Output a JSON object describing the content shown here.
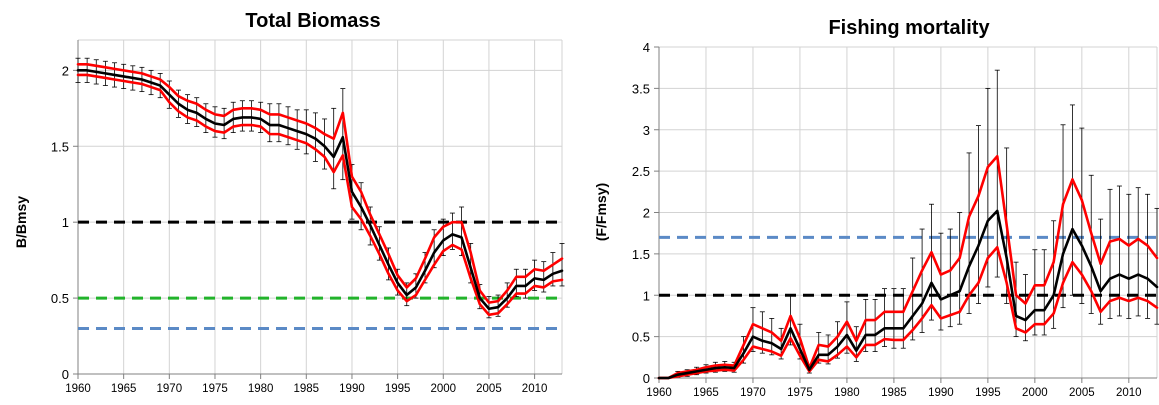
{
  "chart_data": [
    {
      "type": "line",
      "title": "Total Biomass",
      "xlabel": "",
      "ylabel": "B/Bmsy",
      "xlim": [
        1960,
        2013
      ],
      "ylim": [
        0,
        2.2
      ],
      "yticks": [
        0,
        0.5,
        1,
        1.5,
        2
      ],
      "ytick_labels": [
        "0",
        "0.5",
        "1",
        "1.5",
        "2"
      ],
      "xticks": [
        1960,
        1965,
        1970,
        1975,
        1980,
        1985,
        1990,
        1995,
        2000,
        2005,
        2010
      ],
      "grid": true,
      "x": [
        1960,
        1961,
        1962,
        1963,
        1964,
        1965,
        1966,
        1967,
        1968,
        1969,
        1970,
        1971,
        1972,
        1973,
        1974,
        1975,
        1976,
        1977,
        1978,
        1979,
        1980,
        1981,
        1982,
        1983,
        1984,
        1985,
        1986,
        1987,
        1988,
        1989,
        1990,
        1991,
        1992,
        1993,
        1994,
        1995,
        1996,
        1997,
        1998,
        1999,
        2000,
        2001,
        2002,
        2003,
        2004,
        2005,
        2006,
        2007,
        2008,
        2009,
        2010,
        2011,
        2012,
        2013
      ],
      "series": [
        {
          "color": "#000000",
          "role": "median",
          "values": [
            2.0,
            2.0,
            1.99,
            1.98,
            1.97,
            1.96,
            1.95,
            1.94,
            1.92,
            1.9,
            1.84,
            1.78,
            1.74,
            1.72,
            1.68,
            1.65,
            1.64,
            1.68,
            1.69,
            1.69,
            1.68,
            1.64,
            1.64,
            1.62,
            1.6,
            1.58,
            1.55,
            1.5,
            1.43,
            1.56,
            1.2,
            1.1,
            0.98,
            0.85,
            0.72,
            0.6,
            0.52,
            0.57,
            0.68,
            0.8,
            0.88,
            0.92,
            0.9,
            0.7,
            0.5,
            0.43,
            0.44,
            0.5,
            0.58,
            0.58,
            0.63,
            0.62,
            0.66,
            0.68
          ]
        },
        {
          "color": "#ff0000",
          "role": "upper-bound",
          "values": [
            2.04,
            2.04,
            2.03,
            2.02,
            2.01,
            2.0,
            1.99,
            1.98,
            1.96,
            1.94,
            1.89,
            1.83,
            1.8,
            1.78,
            1.74,
            1.71,
            1.7,
            1.74,
            1.75,
            1.75,
            1.74,
            1.71,
            1.71,
            1.69,
            1.67,
            1.65,
            1.62,
            1.58,
            1.55,
            1.72,
            1.3,
            1.2,
            1.05,
            0.92,
            0.79,
            0.65,
            0.57,
            0.63,
            0.76,
            0.9,
            0.97,
            1.0,
            1.0,
            0.8,
            0.55,
            0.47,
            0.48,
            0.55,
            0.64,
            0.64,
            0.69,
            0.68,
            0.72,
            0.76
          ]
        },
        {
          "color": "#ff0000",
          "role": "lower-bound",
          "values": [
            1.97,
            1.97,
            1.96,
            1.95,
            1.94,
            1.93,
            1.92,
            1.91,
            1.89,
            1.87,
            1.79,
            1.73,
            1.69,
            1.67,
            1.63,
            1.6,
            1.59,
            1.63,
            1.64,
            1.64,
            1.63,
            1.58,
            1.58,
            1.56,
            1.54,
            1.52,
            1.48,
            1.43,
            1.33,
            1.44,
            1.1,
            1.02,
            0.91,
            0.79,
            0.66,
            0.55,
            0.48,
            0.52,
            0.62,
            0.72,
            0.81,
            0.85,
            0.82,
            0.63,
            0.46,
            0.39,
            0.4,
            0.46,
            0.53,
            0.53,
            0.58,
            0.57,
            0.61,
            0.62
          ]
        }
      ],
      "error_bars": {
        "color": "#000000",
        "low": [
          1.92,
          1.92,
          1.91,
          1.9,
          1.89,
          1.88,
          1.87,
          1.86,
          1.84,
          1.82,
          1.75,
          1.69,
          1.65,
          1.63,
          1.59,
          1.56,
          1.55,
          1.59,
          1.6,
          1.6,
          1.59,
          1.53,
          1.53,
          1.51,
          1.48,
          1.45,
          1.4,
          1.35,
          1.22,
          1.28,
          1.02,
          0.95,
          0.85,
          0.75,
          0.62,
          0.52,
          0.45,
          0.5,
          0.6,
          0.7,
          0.78,
          0.82,
          0.78,
          0.6,
          0.43,
          0.37,
          0.38,
          0.44,
          0.51,
          0.5,
          0.55,
          0.54,
          0.58,
          0.58
        ],
        "high": [
          2.08,
          2.08,
          2.07,
          2.06,
          2.05,
          2.04,
          2.03,
          2.02,
          2.0,
          1.98,
          1.93,
          1.87,
          1.84,
          1.82,
          1.78,
          1.76,
          1.75,
          1.79,
          1.8,
          1.8,
          1.79,
          1.78,
          1.78,
          1.76,
          1.74,
          1.74,
          1.72,
          1.68,
          1.75,
          1.88,
          1.38,
          1.26,
          1.1,
          0.97,
          0.83,
          0.69,
          0.6,
          0.66,
          0.8,
          0.95,
          1.02,
          1.06,
          1.1,
          0.86,
          0.59,
          0.51,
          0.52,
          0.6,
          0.69,
          0.69,
          0.75,
          0.74,
          0.8,
          0.86
        ]
      },
      "reference_lines": [
        {
          "y": 1.0,
          "color": "#000000"
        },
        {
          "y": 0.5,
          "color": "#22b32b"
        },
        {
          "y": 0.3,
          "color": "#5b8ac6"
        }
      ]
    },
    {
      "type": "line",
      "title": "Fishing mortality",
      "xlabel": "",
      "ylabel": "(F/Fmsy)",
      "xlim": [
        1960,
        2013
      ],
      "ylim": [
        0,
        4
      ],
      "yticks": [
        0,
        0.5,
        1,
        1.5,
        2,
        2.5,
        3,
        3.5,
        4
      ],
      "ytick_labels": [
        "0",
        "0.5",
        "1",
        "1.5",
        "2",
        "2.5",
        "3",
        "3.5",
        "4"
      ],
      "xticks": [
        1960,
        1965,
        1970,
        1975,
        1980,
        1985,
        1990,
        1995,
        2000,
        2005,
        2010
      ],
      "grid": true,
      "x": [
        1960,
        1961,
        1962,
        1963,
        1964,
        1965,
        1966,
        1967,
        1968,
        1969,
        1970,
        1971,
        1972,
        1973,
        1974,
        1975,
        1976,
        1977,
        1978,
        1979,
        1980,
        1981,
        1982,
        1983,
        1984,
        1985,
        1986,
        1987,
        1988,
        1989,
        1990,
        1991,
        1992,
        1993,
        1994,
        1995,
        1996,
        1997,
        1998,
        1999,
        2000,
        2001,
        2002,
        2003,
        2004,
        2005,
        2006,
        2007,
        2008,
        2009,
        2010,
        2011,
        2012,
        2013
      ],
      "series": [
        {
          "color": "#000000",
          "role": "median",
          "values": [
            0.0,
            0.0,
            0.04,
            0.06,
            0.08,
            0.1,
            0.12,
            0.13,
            0.12,
            0.3,
            0.5,
            0.45,
            0.42,
            0.35,
            0.6,
            0.35,
            0.1,
            0.28,
            0.28,
            0.38,
            0.52,
            0.33,
            0.52,
            0.52,
            0.6,
            0.6,
            0.6,
            0.75,
            0.9,
            1.15,
            0.95,
            1.0,
            1.05,
            1.35,
            1.6,
            1.9,
            2.02,
            1.45,
            0.75,
            0.7,
            0.82,
            0.82,
            1.0,
            1.5,
            1.8,
            1.6,
            1.35,
            1.05,
            1.2,
            1.25,
            1.2,
            1.25,
            1.2,
            1.1
          ]
        },
        {
          "color": "#ff0000",
          "role": "upper-bound",
          "values": [
            0.0,
            0.0,
            0.06,
            0.08,
            0.1,
            0.13,
            0.15,
            0.16,
            0.15,
            0.4,
            0.65,
            0.6,
            0.55,
            0.45,
            0.75,
            0.48,
            0.12,
            0.4,
            0.38,
            0.5,
            0.68,
            0.45,
            0.7,
            0.7,
            0.8,
            0.8,
            0.8,
            1.05,
            1.3,
            1.52,
            1.25,
            1.3,
            1.45,
            1.95,
            2.2,
            2.55,
            2.68,
            1.85,
            1.0,
            0.9,
            1.12,
            1.12,
            1.4,
            2.1,
            2.4,
            2.15,
            1.75,
            1.38,
            1.65,
            1.68,
            1.6,
            1.68,
            1.6,
            1.45
          ]
        },
        {
          "color": "#ff0000",
          "role": "lower-bound",
          "values": [
            0.0,
            0.0,
            0.02,
            0.04,
            0.06,
            0.08,
            0.09,
            0.1,
            0.09,
            0.22,
            0.38,
            0.35,
            0.32,
            0.27,
            0.48,
            0.27,
            0.08,
            0.22,
            0.2,
            0.28,
            0.38,
            0.25,
            0.4,
            0.4,
            0.47,
            0.46,
            0.46,
            0.58,
            0.72,
            0.88,
            0.72,
            0.76,
            0.8,
            1.0,
            1.15,
            1.45,
            1.58,
            1.15,
            0.6,
            0.55,
            0.65,
            0.65,
            0.78,
            1.15,
            1.4,
            1.25,
            1.05,
            0.8,
            0.93,
            0.97,
            0.93,
            0.97,
            0.93,
            0.85
          ]
        }
      ],
      "error_bars": {
        "color": "#000000",
        "low": [
          0.0,
          0.0,
          0.01,
          0.02,
          0.04,
          0.06,
          0.07,
          0.08,
          0.07,
          0.18,
          0.32,
          0.3,
          0.28,
          0.23,
          0.4,
          0.23,
          0.06,
          0.18,
          0.17,
          0.24,
          0.3,
          0.2,
          0.32,
          0.32,
          0.38,
          0.36,
          0.36,
          0.46,
          0.55,
          0.7,
          0.58,
          0.62,
          0.65,
          0.78,
          0.9,
          1.1,
          1.22,
          0.9,
          0.5,
          0.45,
          0.52,
          0.52,
          0.6,
          0.85,
          1.0,
          0.9,
          0.78,
          0.65,
          0.72,
          0.75,
          0.72,
          0.75,
          0.72,
          0.65
        ],
        "high": [
          0.0,
          0.0,
          0.08,
          0.1,
          0.13,
          0.16,
          0.19,
          0.2,
          0.19,
          0.5,
          0.85,
          0.8,
          0.72,
          0.6,
          1.0,
          0.65,
          0.16,
          0.55,
          0.52,
          0.68,
          0.92,
          0.62,
          0.95,
          0.95,
          1.08,
          1.08,
          1.08,
          1.45,
          1.8,
          2.1,
          1.75,
          1.8,
          2.0,
          2.72,
          3.05,
          3.5,
          3.72,
          2.78,
          1.4,
          1.25,
          1.55,
          1.55,
          1.9,
          3.06,
          3.3,
          3.02,
          2.45,
          1.92,
          2.28,
          2.32,
          2.22,
          2.3,
          2.22,
          2.05
        ]
      },
      "reference_lines": [
        {
          "y": 1.0,
          "color": "#000000"
        },
        {
          "y": 1.7,
          "color": "#5b8ac6"
        }
      ]
    }
  ]
}
